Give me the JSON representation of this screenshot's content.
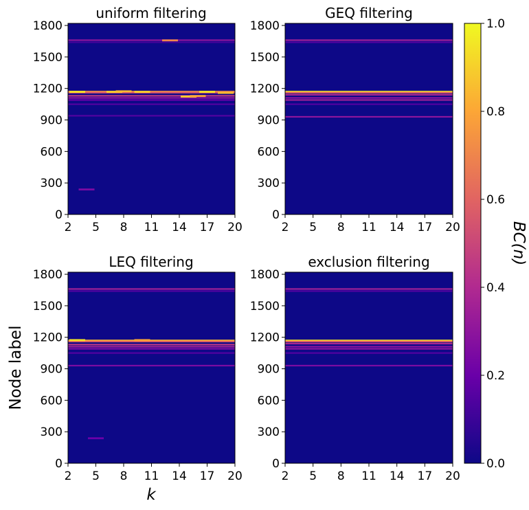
{
  "chart_data": {
    "type": "heatmap",
    "shared": {
      "xlabel": "k",
      "ylabel": "Node label",
      "x_range": [
        2,
        20
      ],
      "y_range": [
        0,
        1820
      ],
      "x_ticks": [
        "2",
        "5",
        "8",
        "11",
        "14",
        "17",
        "20"
      ],
      "y_ticks": [
        "0",
        "300",
        "600",
        "900",
        "1200",
        "1500",
        "1800"
      ],
      "colorbar": {
        "label": "BC(n)",
        "range": [
          0,
          1
        ],
        "ticks": [
          "0.0",
          "0.2",
          "0.4",
          "0.6",
          "0.8",
          "1.0"
        ],
        "colormap": "plasma",
        "colors": [
          "#0d0887",
          "#6a00a8",
          "#b12a90",
          "#e16462",
          "#fca636",
          "#f0f921"
        ]
      },
      "grid": false,
      "background_value": 0.0
    },
    "panels": [
      {
        "title": "uniform filtering",
        "bands": [
          {
            "node": 1170,
            "value": 0.75
          },
          {
            "node": 1160,
            "value": 0.55
          },
          {
            "node": 1130,
            "value": 0.45
          },
          {
            "node": 1110,
            "value": 0.3
          },
          {
            "node": 1090,
            "value": 0.2
          },
          {
            "node": 1050,
            "value": 0.15
          },
          {
            "node": 940,
            "value": 0.15
          },
          {
            "node": 1660,
            "value": 0.3
          },
          {
            "node": 1640,
            "value": 0.12
          }
        ],
        "spots": [
          {
            "k": 3,
            "node": 1170,
            "value": 0.95
          },
          {
            "k": 7,
            "node": 1170,
            "value": 0.9
          },
          {
            "k": 8,
            "node": 1175,
            "value": 0.85
          },
          {
            "k": 10,
            "node": 1170,
            "value": 0.9
          },
          {
            "k": 13,
            "node": 1660,
            "value": 0.7
          },
          {
            "k": 15,
            "node": 1125,
            "value": 0.9
          },
          {
            "k": 16,
            "node": 1130,
            "value": 0.8
          },
          {
            "k": 17,
            "node": 1170,
            "value": 0.95
          },
          {
            "k": 19,
            "node": 1160,
            "value": 0.85
          },
          {
            "k": 4,
            "node": 240,
            "value": 0.25
          }
        ]
      },
      {
        "title": "GEQ filtering",
        "bands": [
          {
            "node": 1170,
            "value": 0.95
          },
          {
            "node": 1160,
            "value": 0.6
          },
          {
            "node": 1140,
            "value": 0.4
          },
          {
            "node": 1110,
            "value": 0.3
          },
          {
            "node": 1090,
            "value": 0.35
          },
          {
            "node": 1050,
            "value": 0.15
          },
          {
            "node": 930,
            "value": 0.3
          },
          {
            "node": 1660,
            "value": 0.35
          },
          {
            "node": 1640,
            "value": 0.15
          }
        ],
        "spots": []
      },
      {
        "title": "LEQ filtering",
        "bands": [
          {
            "node": 1170,
            "value": 0.85
          },
          {
            "node": 1160,
            "value": 0.6
          },
          {
            "node": 1130,
            "value": 0.45
          },
          {
            "node": 1110,
            "value": 0.35
          },
          {
            "node": 1090,
            "value": 0.25
          },
          {
            "node": 1050,
            "value": 0.15
          },
          {
            "node": 930,
            "value": 0.25
          },
          {
            "node": 1660,
            "value": 0.35
          },
          {
            "node": 1640,
            "value": 0.15
          }
        ],
        "spots": [
          {
            "k": 3,
            "node": 1175,
            "value": 0.95
          },
          {
            "k": 10,
            "node": 1175,
            "value": 0.8
          },
          {
            "k": 5,
            "node": 240,
            "value": 0.2
          }
        ]
      },
      {
        "title": "exclusion filtering",
        "bands": [
          {
            "node": 1170,
            "value": 0.95
          },
          {
            "node": 1160,
            "value": 0.6
          },
          {
            "node": 1140,
            "value": 0.4
          },
          {
            "node": 1110,
            "value": 0.3
          },
          {
            "node": 1090,
            "value": 0.3
          },
          {
            "node": 1050,
            "value": 0.15
          },
          {
            "node": 930,
            "value": 0.25
          },
          {
            "node": 1660,
            "value": 0.35
          },
          {
            "node": 1640,
            "value": 0.15
          }
        ],
        "spots": []
      }
    ]
  }
}
